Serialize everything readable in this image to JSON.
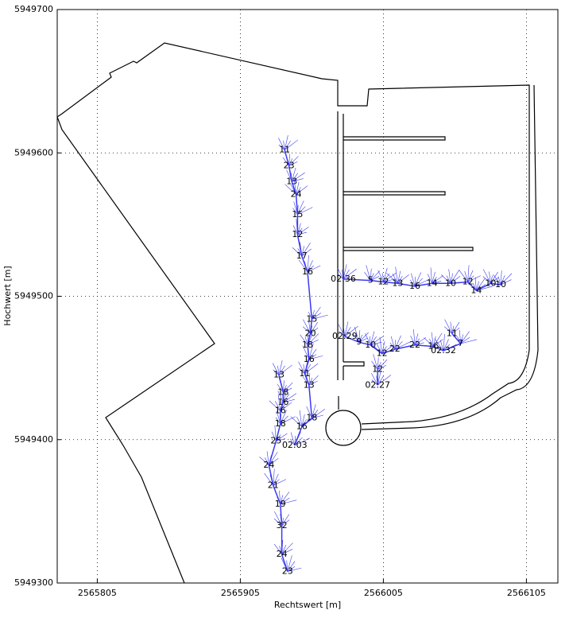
{
  "chart_data": {
    "type": "line",
    "xlabel": "Rechtswert [m]",
    "ylabel": "Hochwert [m]",
    "xlim": [
      2565777,
      2566127
    ],
    "xticks": [
      2565805,
      2565905,
      2566005,
      2566105
    ],
    "ylim": [
      5949300,
      5949700
    ],
    "yticks": [
      5949300,
      5949400,
      5949500,
      5949600,
      5949700
    ],
    "grid": true,
    "series": [
      {
        "color": "#3a3af0",
        "x": [
          2565936,
          2565939,
          2565941,
          2565944,
          2565945,
          2565945,
          2565948,
          2565952,
          2565955,
          2565954,
          2565952,
          2565953,
          2565950,
          2565953,
          2565955,
          2565948,
          2565943
        ],
        "values": [
          5949602,
          5949591,
          5949580,
          5949571,
          5949557,
          5949543,
          5949528,
          5949517,
          5949484,
          5949474,
          5949466,
          5949456,
          5949446,
          5949438,
          5949415,
          5949409,
          5949396
        ],
        "labels": [
          "11",
          "23",
          "13",
          "24",
          "15",
          "12",
          "17",
          "16",
          "15",
          "20",
          "18",
          "16",
          "11",
          "13",
          "18",
          "16",
          "02:03"
        ]
      },
      {
        "color": "#3a3af0",
        "x": [
          2565932,
          2565935,
          2565935,
          2565933,
          2565933,
          2565930,
          2565925,
          2565928,
          2565933,
          2565934,
          2565934,
          2565938
        ],
        "values": [
          5949445,
          5949433,
          5949426,
          5949420,
          5949411,
          5949399,
          5949382,
          5949368,
          5949355,
          5949340,
          5949320,
          5949308
        ],
        "labels": [
          "13",
          "18",
          "16",
          "16",
          "18",
          "25",
          "24",
          "21",
          "19",
          "32",
          "24",
          "23"
        ]
      },
      {
        "color": "#3a3af0",
        "x": [
          2565977,
          2565996,
          2566005,
          2566015,
          2566027,
          2566039,
          2566052,
          2566064,
          2566070,
          2566080,
          2566087
        ],
        "values": [
          5949512,
          5949511,
          5949510,
          5949509,
          5949507,
          5949509,
          5949509,
          5949510,
          5949504,
          5949509,
          5949508
        ],
        "labels": [
          "02:36",
          "5",
          "12",
          "13",
          "16",
          "14",
          "10",
          "12",
          "14",
          "10",
          "10"
        ]
      },
      {
        "color": "#3a3af0",
        "x": [
          2565978,
          2565988,
          2565996,
          2566004,
          2566013,
          2566027,
          2566040,
          2566047,
          2566059,
          2566053
        ],
        "values": [
          5949472,
          5949468,
          5949466,
          5949460,
          5949463,
          5949466,
          5949465,
          5949462,
          5949467,
          5949474
        ],
        "labels": [
          "02:29",
          "9",
          "10",
          "12",
          "22",
          "22",
          "16",
          "02:32",
          "7",
          "11"
        ]
      },
      {
        "color": "#3a3af0",
        "x": [
          2566001,
          2566001
        ],
        "values": [
          5949438,
          5949449
        ],
        "labels": [
          "02:27",
          "12"
        ]
      }
    ]
  }
}
